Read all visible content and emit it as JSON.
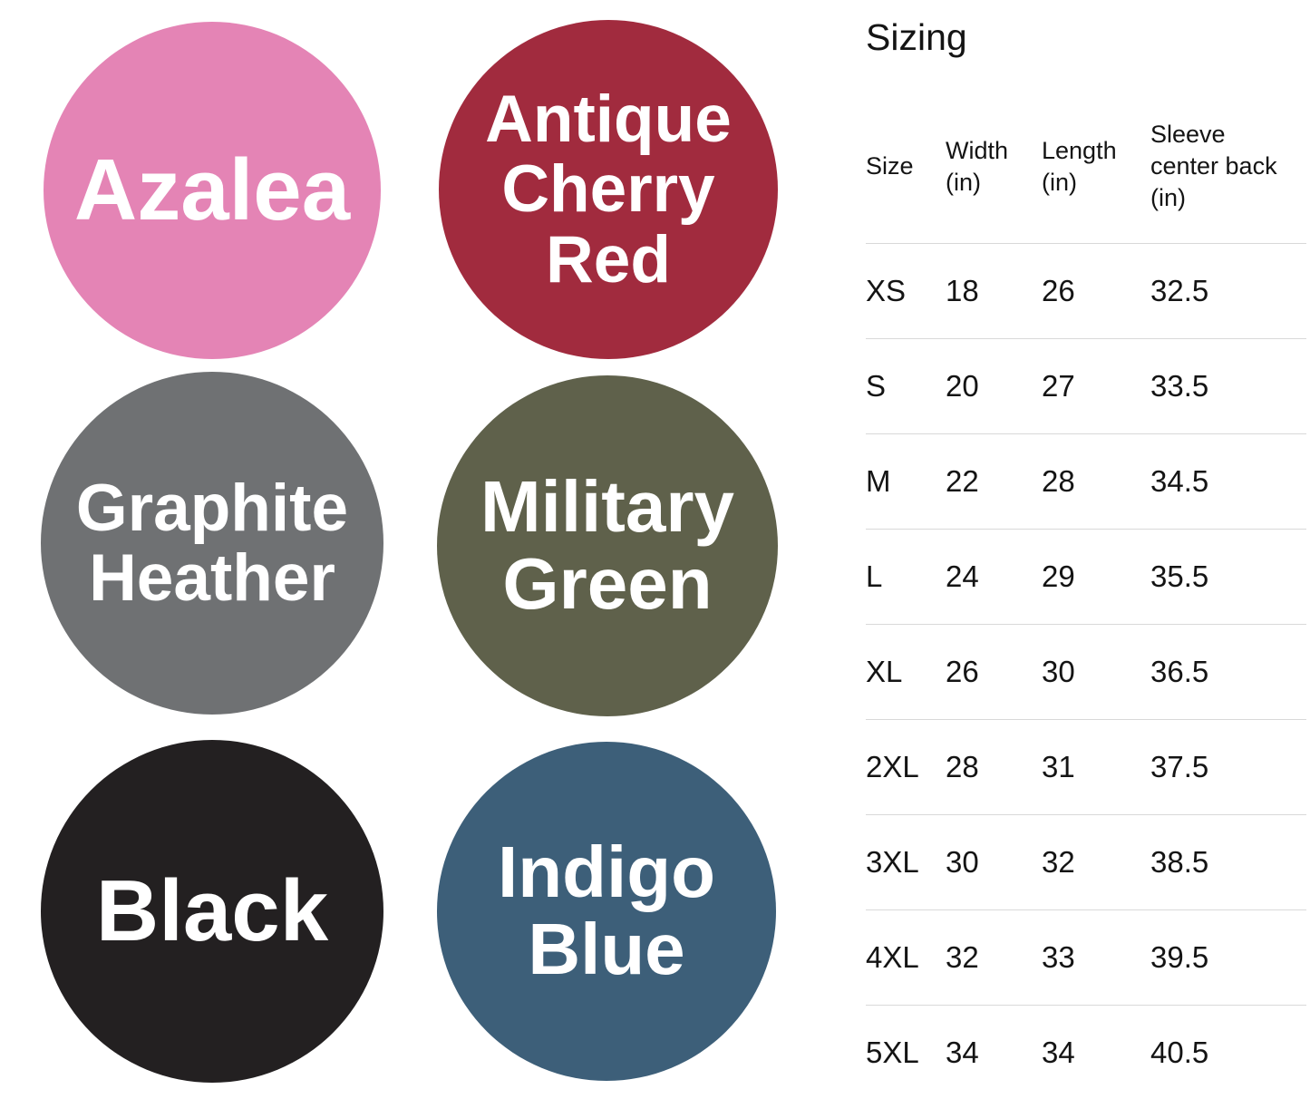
{
  "swatch_text_color": "#FFFFFF",
  "swatches": [
    {
      "name": "Azalea",
      "hex": "#E484B5",
      "lines": [
        "Azalea"
      ]
    },
    {
      "name": "Antique Cherry Red",
      "hex": "#A12B3E",
      "lines": [
        "Antique",
        "Cherry",
        "Red"
      ]
    },
    {
      "name": "Graphite Heather",
      "hex": "#6F7173",
      "lines": [
        "Graphite",
        "Heather"
      ]
    },
    {
      "name": "Military Green",
      "hex": "#5F614B",
      "lines": [
        "Military",
        "Green"
      ]
    },
    {
      "name": "Black",
      "hex": "#232021",
      "lines": [
        "Black"
      ]
    },
    {
      "name": "Indigo Blue",
      "hex": "#3D5F79",
      "lines": [
        "Indigo",
        "Blue"
      ]
    }
  ],
  "sizing": {
    "title": "Sizing",
    "columns": [
      {
        "name": "Size",
        "lines": [
          "Size"
        ]
      },
      {
        "name": "Width (in)",
        "lines": [
          "Width",
          "(in)"
        ]
      },
      {
        "name": "Length (in)",
        "lines": [
          "Length",
          "(in)"
        ]
      },
      {
        "name": "Sleeve center back (in)",
        "lines": [
          "Sleeve",
          "center back",
          "(in)"
        ]
      }
    ],
    "rows": [
      {
        "size": "XS",
        "width": "18",
        "length": "26",
        "sleeve": "32.5"
      },
      {
        "size": "S",
        "width": "20",
        "length": "27",
        "sleeve": "33.5"
      },
      {
        "size": "M",
        "width": "22",
        "length": "28",
        "sleeve": "34.5"
      },
      {
        "size": "L",
        "width": "24",
        "length": "29",
        "sleeve": "35.5"
      },
      {
        "size": "XL",
        "width": "26",
        "length": "30",
        "sleeve": "36.5"
      },
      {
        "size": "2XL",
        "width": "28",
        "length": "31",
        "sleeve": "37.5"
      },
      {
        "size": "3XL",
        "width": "30",
        "length": "32",
        "sleeve": "38.5"
      },
      {
        "size": "4XL",
        "width": "32",
        "length": "33",
        "sleeve": "39.5"
      },
      {
        "size": "5XL",
        "width": "34",
        "length": "34",
        "sleeve": "40.5"
      }
    ]
  },
  "text_color": "#141414",
  "divider_color": "#D9D9D9"
}
